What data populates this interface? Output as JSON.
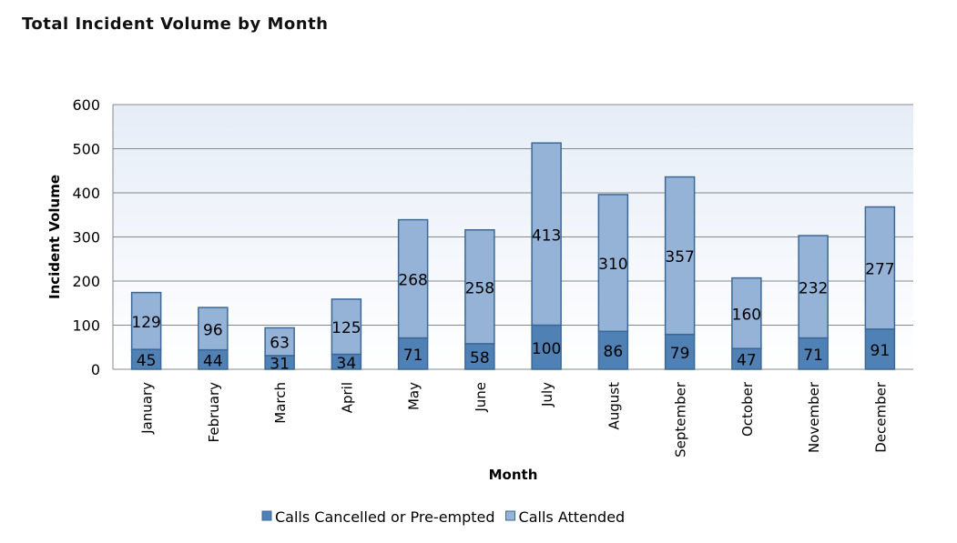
{
  "chart_data": {
    "type": "bar",
    "stacked": true,
    "title": "Total Incident Volume by Month",
    "xlabel": "Month",
    "ylabel": "Incident Volume",
    "ylim": [
      0,
      600
    ],
    "yticks": [
      0,
      100,
      200,
      300,
      400,
      500,
      600
    ],
    "grid": true,
    "legend_position": "bottom",
    "categories": [
      "January",
      "February",
      "March",
      "April",
      "May",
      "June",
      "July",
      "August",
      "September",
      "October",
      "November",
      "December"
    ],
    "series": [
      {
        "name": "Calls Cancelled or Pre-empted",
        "color": "#4f81b4",
        "values": [
          45,
          44,
          31,
          34,
          71,
          58,
          100,
          86,
          79,
          47,
          71,
          91
        ]
      },
      {
        "name": "Calls Attended",
        "color": "#95b3d7",
        "values": [
          129,
          96,
          63,
          125,
          268,
          258,
          413,
          310,
          357,
          160,
          232,
          277
        ]
      }
    ]
  }
}
